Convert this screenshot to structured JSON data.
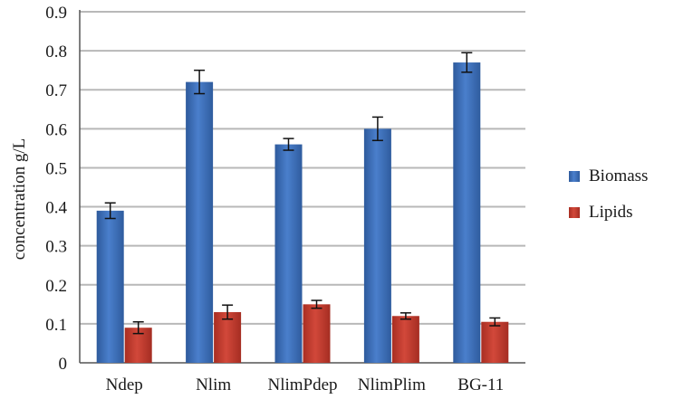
{
  "chart_data": {
    "type": "bar",
    "title": "",
    "xlabel": "",
    "ylabel": "concentration g/L",
    "ylim": [
      0,
      0.9
    ],
    "yticks": [
      "0",
      "0.1",
      "0.2",
      "0.3",
      "0.4",
      "0.5",
      "0.6",
      "0.7",
      "0.8",
      "0.9"
    ],
    "grid": true,
    "legend_position": "right",
    "categories": [
      "Ndep",
      "Nlim",
      "NlimPdep",
      "NlimPlim",
      "BG-11"
    ],
    "series": [
      {
        "name": "Biomass",
        "color": "#3d6db5",
        "values": [
          0.39,
          0.72,
          0.56,
          0.6,
          0.77
        ],
        "errors": [
          0.02,
          0.03,
          0.015,
          0.03,
          0.025
        ]
      },
      {
        "name": "Lipids",
        "color": "#c0392b",
        "values": [
          0.09,
          0.13,
          0.15,
          0.12,
          0.105
        ],
        "errors": [
          0.015,
          0.018,
          0.01,
          0.008,
          0.01
        ]
      }
    ]
  }
}
